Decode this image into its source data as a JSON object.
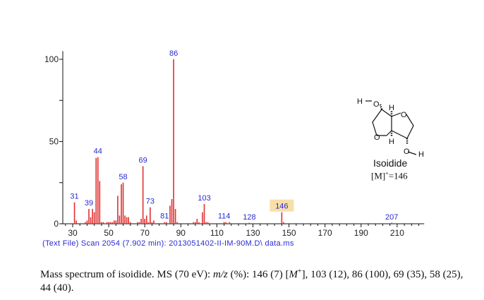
{
  "chart_data": {
    "type": "bar",
    "subtype": "mass-spectrum",
    "xlim": [
      25,
      225
    ],
    "ylim": [
      0,
      100
    ],
    "x_ticks": [
      30,
      50,
      70,
      90,
      110,
      130,
      150,
      170,
      190,
      210
    ],
    "y_ticks": [
      0,
      50,
      100
    ],
    "bar_color": "#e03030",
    "label_color": "#2a2ad0",
    "highlight_color": "#f8dfa8",
    "peaks": [
      {
        "mz": 31,
        "i": 13
      },
      {
        "mz": 32,
        "i": 2
      },
      {
        "mz": 37,
        "i": 1
      },
      {
        "mz": 38,
        "i": 2
      },
      {
        "mz": 39,
        "i": 9
      },
      {
        "mz": 40,
        "i": 4
      },
      {
        "mz": 41,
        "i": 9
      },
      {
        "mz": 42,
        "i": 7
      },
      {
        "mz": 43,
        "i": 40
      },
      {
        "mz": 44,
        "i": 40.5
      },
      {
        "mz": 45,
        "i": 26
      },
      {
        "mz": 46,
        "i": 1
      },
      {
        "mz": 47,
        "i": 1
      },
      {
        "mz": 49,
        "i": 1
      },
      {
        "mz": 50,
        "i": 1
      },
      {
        "mz": 51,
        "i": 1
      },
      {
        "mz": 52,
        "i": 1
      },
      {
        "mz": 53,
        "i": 2
      },
      {
        "mz": 54,
        "i": 2
      },
      {
        "mz": 55,
        "i": 17
      },
      {
        "mz": 56,
        "i": 5
      },
      {
        "mz": 57,
        "i": 24
      },
      {
        "mz": 58,
        "i": 25
      },
      {
        "mz": 59,
        "i": 5
      },
      {
        "mz": 60,
        "i": 4
      },
      {
        "mz": 61,
        "i": 4
      },
      {
        "mz": 62,
        "i": 1
      },
      {
        "mz": 66,
        "i": 1
      },
      {
        "mz": 67,
        "i": 1
      },
      {
        "mz": 68,
        "i": 3
      },
      {
        "mz": 69,
        "i": 35
      },
      {
        "mz": 70,
        "i": 3
      },
      {
        "mz": 71,
        "i": 5
      },
      {
        "mz": 72,
        "i": 1
      },
      {
        "mz": 73,
        "i": 10
      },
      {
        "mz": 74,
        "i": 1
      },
      {
        "mz": 75,
        "i": 2
      },
      {
        "mz": 81,
        "i": 1
      },
      {
        "mz": 82,
        "i": 1
      },
      {
        "mz": 84,
        "i": 11
      },
      {
        "mz": 85,
        "i": 15
      },
      {
        "mz": 86,
        "i": 100
      },
      {
        "mz": 87,
        "i": 9
      },
      {
        "mz": 88,
        "i": 1
      },
      {
        "mz": 97,
        "i": 1
      },
      {
        "mz": 98,
        "i": 1
      },
      {
        "mz": 99,
        "i": 3
      },
      {
        "mz": 100,
        "i": 1
      },
      {
        "mz": 102,
        "i": 7
      },
      {
        "mz": 103,
        "i": 12
      },
      {
        "mz": 104,
        "i": 1
      },
      {
        "mz": 105,
        "i": 1
      },
      {
        "mz": 114,
        "i": 1
      },
      {
        "mz": 115,
        "i": 1
      },
      {
        "mz": 117,
        "i": 1
      },
      {
        "mz": 128,
        "i": 0.5
      },
      {
        "mz": 146,
        "i": 7
      },
      {
        "mz": 147,
        "i": 1
      },
      {
        "mz": 207,
        "i": 0.5
      }
    ],
    "labeled_peaks": [
      "31",
      "39",
      "44",
      "58",
      "69",
      "73",
      "81",
      "86",
      "103",
      "114",
      "128",
      "146",
      "207"
    ],
    "highlighted_peak": "146"
  },
  "scan_info": "(Text File) Scan 2054 (7.902 min): 2013051402-II-IM-90M.D\\ data.ms",
  "molecule": {
    "name": "Isoidide",
    "ion_prefix": "[M]",
    "ion_sup": "+",
    "ion_suffix": "=146",
    "atoms": {
      "H": "H",
      "O": "O"
    }
  },
  "caption": {
    "t1": "Mass spectrum of isoidide. MS (70 eV): ",
    "mz": "m/z",
    "t2": " (%): 146 (7) [",
    "M": "M",
    "sup": "+",
    "t3": "], 103 (12), 86 (100), 69 (35), 58 (25), 44 (40)."
  }
}
